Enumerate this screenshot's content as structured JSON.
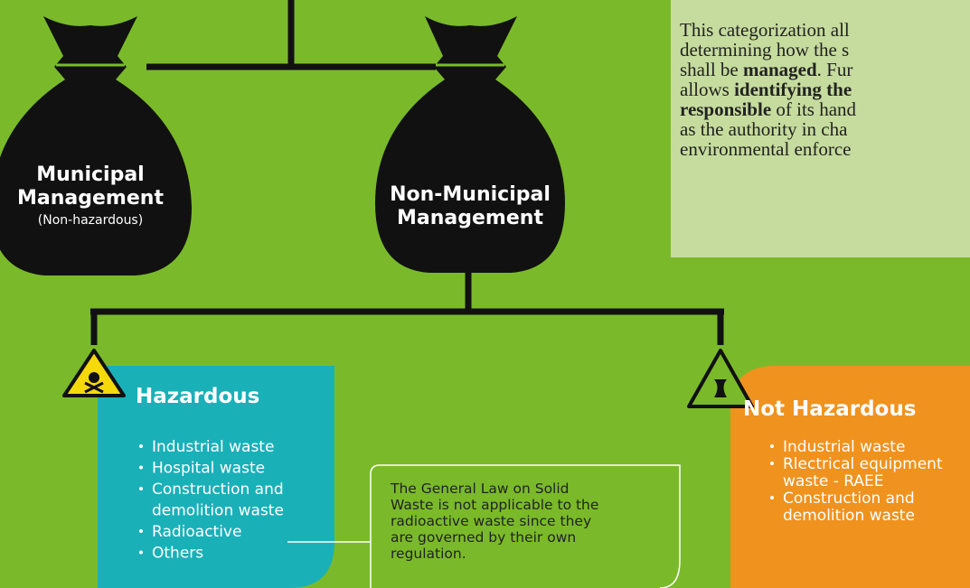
{
  "bags": [
    {
      "title": [
        "Municipal",
        "Management"
      ],
      "subtitle": "(Non-hazardous)"
    },
    {
      "title": [
        "Non-Municipal",
        "Management"
      ]
    }
  ],
  "note": {
    "lines": [
      [
        {
          "text": "This categorization all",
          "bold": false
        }
      ],
      [
        {
          "text": "determining how the s",
          "bold": false
        }
      ],
      [
        {
          "text": "shall be ",
          "bold": false
        },
        {
          "text": "managed",
          "bold": true
        },
        {
          "text": ". Fur",
          "bold": false
        }
      ],
      [
        {
          "text": "allows ",
          "bold": false
        },
        {
          "text": "identifying the",
          "bold": true
        }
      ],
      [
        {
          "text": "responsible",
          "bold": true
        },
        {
          "text": " of its hand",
          "bold": false
        }
      ],
      [
        {
          "text": "as the authority in cha",
          "bold": false
        }
      ],
      [
        {
          "text": "environmental enforce",
          "bold": false
        }
      ]
    ]
  },
  "hazardous": {
    "title": "Hazardous",
    "items": [
      "Industrial waste",
      "Hospital waste",
      "Construction and\ndemolition waste",
      "Radioactive",
      "Others"
    ]
  },
  "not_hazardous": {
    "title": "Not Hazardous",
    "items": [
      "Industrial waste",
      "Rlectrical equipment\nwaste - RAEE",
      "Construction and\ndemolition waste"
    ]
  },
  "callout": {
    "lines": [
      "The General Law on Solid",
      "Waste is not applicable to the",
      "radioactive waste since they",
      "are governed by their own",
      "regulation."
    ]
  }
}
